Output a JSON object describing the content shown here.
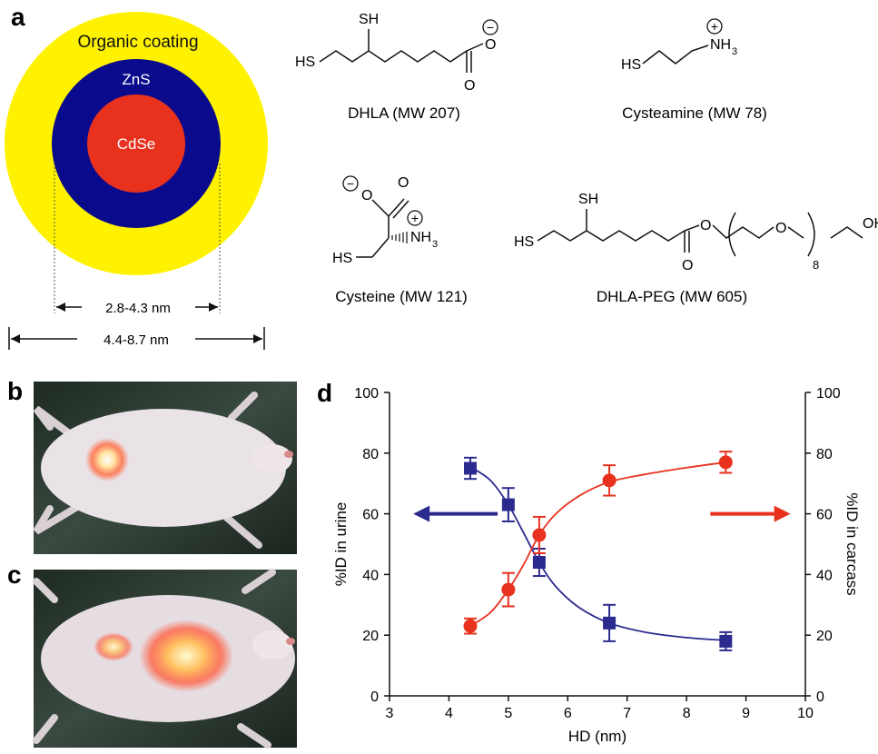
{
  "panel_labels": {
    "a": "a",
    "b": "b",
    "c": "c",
    "d": "d"
  },
  "nanoparticle": {
    "outer_label": "Organic coating",
    "shell_label": "ZnS",
    "core_label": "CdSe",
    "inner_dim": "2.8-4.3 nm",
    "outer_dim": "4.4-8.7 nm",
    "colors": {
      "coating": "#FFF200",
      "shell": "#0A0A8C",
      "core": "#E8321E"
    }
  },
  "molecules": {
    "dhla": {
      "caption": "DHLA (MW 207)"
    },
    "cysteamine": {
      "caption": "Cysteamine (MW 78)"
    },
    "cysteine": {
      "caption": "Cysteine (MW 121)"
    },
    "dhla_peg": {
      "caption": "DHLA-PEG  (MW 605)"
    },
    "atoms": {
      "sh": "SH",
      "hs": "HS",
      "o": "O",
      "oh": "OH",
      "nh3": "NH",
      "sub3": "3",
      "sub8": "8",
      "minus": "−",
      "plus": "+"
    }
  },
  "photos": {
    "b_alt": "mouse-image-b",
    "c_alt": "mouse-image-c"
  },
  "chart_data": {
    "type": "line",
    "xlabel": "HD (nm)",
    "ylabel": "%ID in urine",
    "y2label": "%ID in carcass",
    "xlim": [
      3,
      10
    ],
    "ylim": [
      0,
      100
    ],
    "y2lim": [
      0,
      100
    ],
    "xticks": [
      3,
      4,
      5,
      6,
      7,
      8,
      9,
      10
    ],
    "yticks": [
      0,
      20,
      40,
      60,
      80,
      100
    ],
    "grid": false,
    "series": [
      {
        "axis": "left",
        "color": "#2B2A8F",
        "marker": "square",
        "x": [
          4.36,
          5.0,
          5.52,
          6.7,
          8.66
        ],
        "y": [
          75,
          63,
          44,
          24,
          18
        ],
        "err": [
          3.5,
          5.5,
          4.5,
          6,
          3
        ],
        "curve": [
          [
            4.36,
            75.5
          ],
          [
            4.7,
            71
          ],
          [
            5.0,
            63
          ],
          [
            5.25,
            54
          ],
          [
            5.52,
            44
          ],
          [
            5.8,
            36
          ],
          [
            6.2,
            29
          ],
          [
            6.7,
            24
          ],
          [
            7.3,
            21
          ],
          [
            8.0,
            19.2
          ],
          [
            8.66,
            18.3
          ]
        ],
        "arrow_direction": "left"
      },
      {
        "axis": "right",
        "color": "#E8321E",
        "marker": "circle",
        "x": [
          4.36,
          5.0,
          5.52,
          6.7,
          8.66
        ],
        "y": [
          23,
          35,
          53,
          71,
          77
        ],
        "err": [
          2.5,
          5.5,
          6,
          5,
          3.5
        ],
        "curve": [
          [
            4.36,
            23
          ],
          [
            4.7,
            27.5
          ],
          [
            5.0,
            35
          ],
          [
            5.25,
            43
          ],
          [
            5.52,
            53
          ],
          [
            5.8,
            60
          ],
          [
            6.2,
            66
          ],
          [
            6.7,
            70.5
          ],
          [
            7.3,
            73
          ],
          [
            8.0,
            75.2
          ],
          [
            8.66,
            77
          ]
        ],
        "arrow_direction": "right"
      }
    ]
  }
}
